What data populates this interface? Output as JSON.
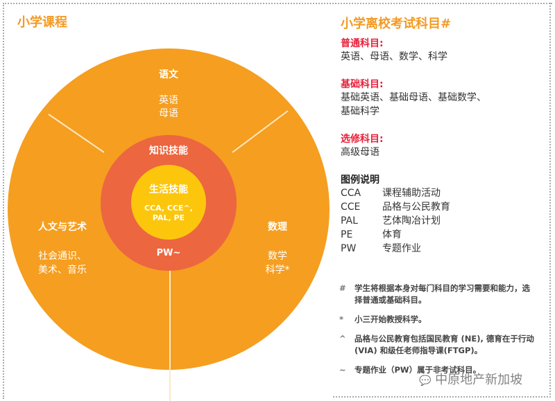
{
  "left": {
    "title": "小学课程",
    "sectors": {
      "top": {
        "title": "语文",
        "items": "英语\n母语"
      },
      "left": {
        "title": "人文与艺术",
        "items": "社会通识、\n美术、音乐"
      },
      "right": {
        "title": "数理",
        "items": "数学\n科学*"
      }
    },
    "ring": {
      "title": "知识技能",
      "bottom": "PW~"
    },
    "core": {
      "title": "生活技能",
      "items": "CCA, CCE^,\nPAL, PE"
    },
    "colors": {
      "outer": "#f59e20",
      "ring": "#ec6640",
      "core": "#fcc60d"
    }
  },
  "right": {
    "title": "小学离校考试科目#",
    "groups": [
      {
        "label": "普通科目:",
        "text": "英语、母语、数学、科学"
      },
      {
        "label": "基础科目:",
        "text": "基础英语、基础母语、基础数学、\n基础科学"
      },
      {
        "label": "选修科目:",
        "text": "高级母语"
      }
    ],
    "legend_title": "图例说明",
    "legend": [
      {
        "k": "CCA",
        "v": "课程辅助活动"
      },
      {
        "k": "CCE",
        "v": "品格与公民教育"
      },
      {
        "k": "PAL",
        "v": "艺体陶冶计划"
      },
      {
        "k": "PE",
        "v": "体育"
      },
      {
        "k": "PW",
        "v": "专题作业"
      }
    ],
    "notes": [
      {
        "m": "#",
        "t": "学生将根据本身对每门科目的学习需要和能力，选择普通或基础科目。"
      },
      {
        "m": "*",
        "t": "小三开始教授科学。"
      },
      {
        "m": "^",
        "t": "品格与公民教育包括国民教育 (NE), 德育在于行动 (VIA) 和级任老师指导课(FTGP)。"
      },
      {
        "m": "~",
        "t": "专题作业（PW）属于非考试科目。"
      }
    ]
  },
  "watermark": "中原地产新加坡"
}
